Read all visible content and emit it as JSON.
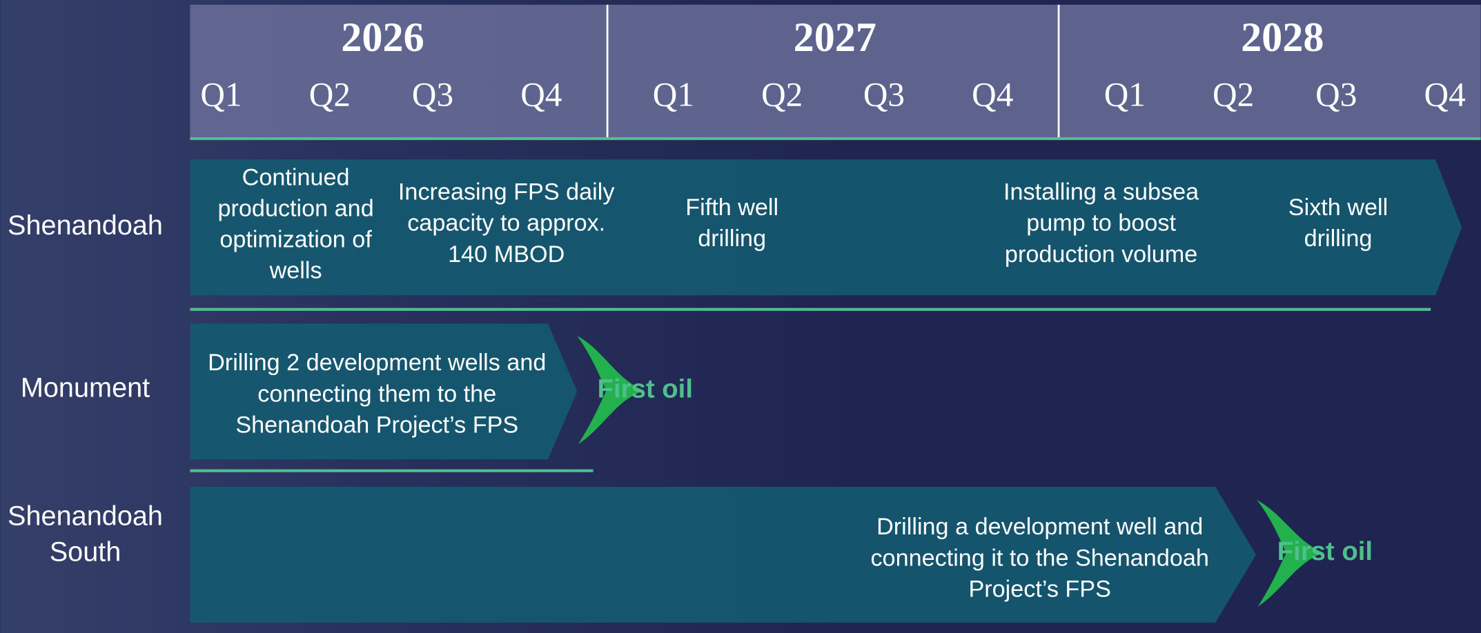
{
  "header": {
    "years": [
      {
        "label": "2026",
        "quarters": [
          "Q1",
          "Q2",
          "Q3",
          "Q4"
        ]
      },
      {
        "label": "2027",
        "quarters": [
          "Q1",
          "Q2",
          "Q3",
          "Q4"
        ]
      },
      {
        "label": "2028",
        "quarters": [
          "Q1",
          "Q2",
          "Q3",
          "Q4"
        ]
      }
    ]
  },
  "rows": [
    {
      "label": [
        "Shenandoah"
      ],
      "activities": [
        {
          "lines": [
            "Continued",
            "production and",
            "optimization of",
            "wells"
          ]
        },
        {
          "lines": [
            "Increasing FPS daily",
            "capacity to approx.",
            "140 MBOD"
          ]
        },
        {
          "lines": [
            "Fifth well",
            "drilling"
          ]
        },
        {
          "lines": [
            "Installing a subsea",
            "pump to boost",
            "production volume"
          ]
        },
        {
          "lines": [
            "Sixth well",
            "drilling"
          ]
        }
      ]
    },
    {
      "label": [
        "Monument"
      ],
      "activities": [
        {
          "lines": [
            "Drilling 2 development wells and",
            "connecting them to the",
            "Shenandoah Project’s FPS"
          ]
        }
      ],
      "milestone": "First oil"
    },
    {
      "label": [
        "Shenandoah",
        "South"
      ],
      "activities": [
        {
          "lines": [
            "Drilling a development well and",
            "connecting it to the Shenandoah",
            "Project’s FPS"
          ]
        }
      ],
      "milestone": "First oil"
    }
  ]
}
